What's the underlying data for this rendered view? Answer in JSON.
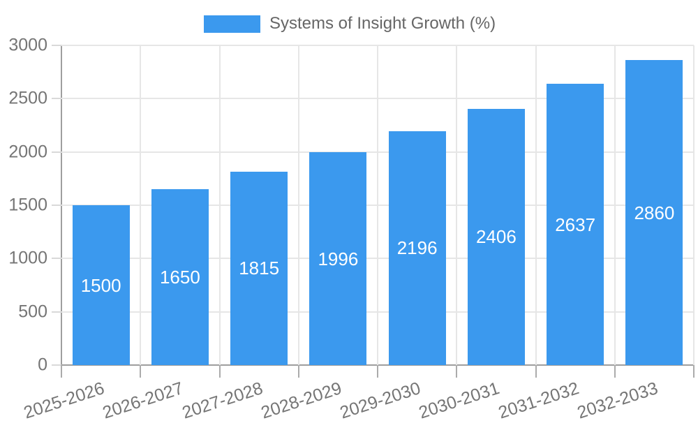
{
  "legend": {
    "label": "Systems of Insight Growth (%)",
    "swatch_color": "#3B99EE"
  },
  "chart_data": {
    "type": "bar",
    "title": "Systems of Insight Growth (%)",
    "categories": [
      "2025-2026",
      "2026-2027",
      "2027-2028",
      "2028-2029",
      "2029-2030",
      "2030-2031",
      "2031-2032",
      "2032-2033"
    ],
    "values": [
      1500,
      1650,
      1815,
      1996,
      2196,
      2406,
      2637,
      2860
    ],
    "bar_labels": [
      "1500",
      "1650",
      "1815",
      "1996",
      "2196",
      "2406",
      "2637",
      "2860"
    ],
    "series": [
      {
        "name": "Systems of Insight Growth (%)",
        "values": [
          1500,
          1650,
          1815,
          1996,
          2196,
          2406,
          2637,
          2860
        ]
      }
    ],
    "xlabel": "",
    "ylabel": "",
    "ylim": [
      0,
      3000
    ],
    "ytick_step": 500,
    "yticks": [
      0,
      500,
      1000,
      1500,
      2000,
      2500,
      3000
    ],
    "grid": true,
    "legend_position": "top-center",
    "x_tick_rotation_deg": -18,
    "colors": {
      "bar": "#3B99EE",
      "value_label": "#FFFFFF",
      "tick_label": "#757575",
      "legend_text": "#666666",
      "grid_line": "#E6E6E6",
      "axis_line": "#9E9E9E",
      "background": "#FFFFFF"
    }
  }
}
